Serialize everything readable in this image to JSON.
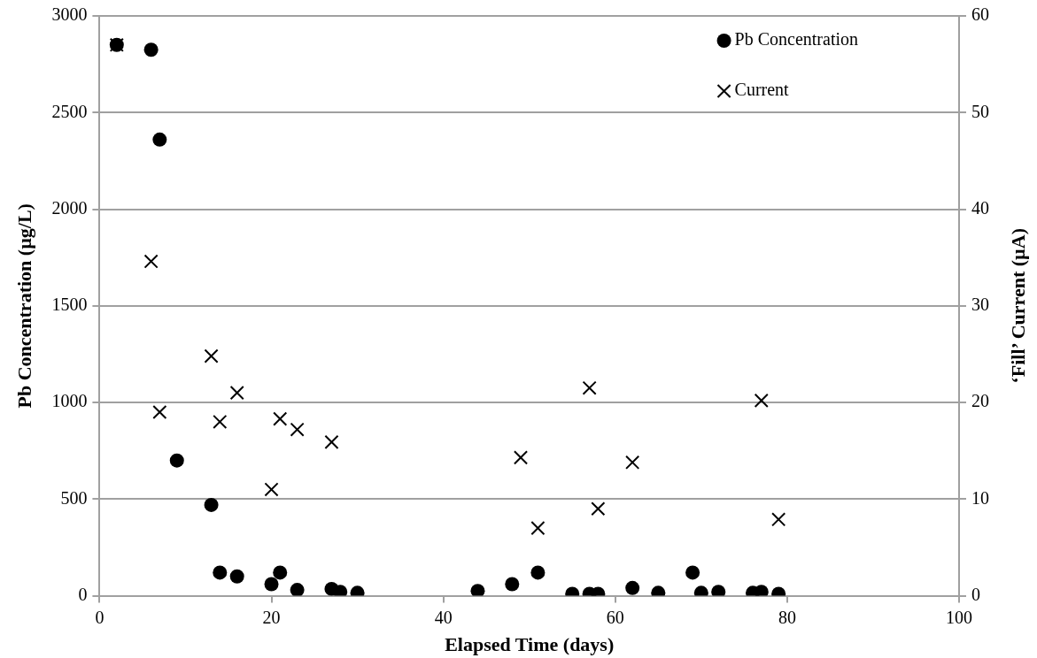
{
  "chart_data": {
    "type": "scatter",
    "xlabel": "Elapsed Time (days)",
    "ylabel": "Pb Concentration (µg/L)",
    "y2label": "‘Fill’ Current (µA)",
    "xlim": [
      0,
      100
    ],
    "xticks": [
      0,
      20,
      40,
      60,
      80,
      100
    ],
    "ylim": [
      0,
      3000
    ],
    "yticks": [
      0,
      500,
      1000,
      1500,
      2000,
      2500,
      3000
    ],
    "y2lim": [
      0,
      60
    ],
    "y2ticks": [
      0,
      10,
      20,
      30,
      40,
      50,
      60
    ],
    "grid": "y",
    "legend": "top right",
    "series": [
      {
        "name": "Pb Concentration",
        "color": "#000000",
        "marker": "circle",
        "x": [
          2,
          6,
          7,
          9,
          13,
          14,
          16,
          20,
          21,
          23,
          27,
          28,
          30,
          44,
          48,
          51,
          55,
          57,
          58,
          62,
          65,
          69,
          70,
          72,
          76,
          77,
          79
        ],
        "values": [
          2850,
          2825,
          2360,
          700,
          470,
          120,
          100,
          60,
          120,
          30,
          35,
          20,
          15,
          25,
          60,
          120,
          10,
          10,
          10,
          40,
          15,
          120,
          15,
          20,
          15,
          20,
          10
        ]
      },
      {
        "name": "Current",
        "color": "#000000",
        "marker": "cross",
        "axis": "y2",
        "x": [
          2,
          6,
          7,
          13,
          14,
          16,
          20,
          21,
          23,
          27,
          49,
          51,
          57,
          58,
          62,
          77,
          79
        ],
        "values": [
          57,
          34.6,
          19,
          24.8,
          18,
          21,
          11,
          18.3,
          17.2,
          15.9,
          14.3,
          7,
          21.5,
          9,
          13.8,
          20.2,
          7.9
        ]
      }
    ]
  }
}
